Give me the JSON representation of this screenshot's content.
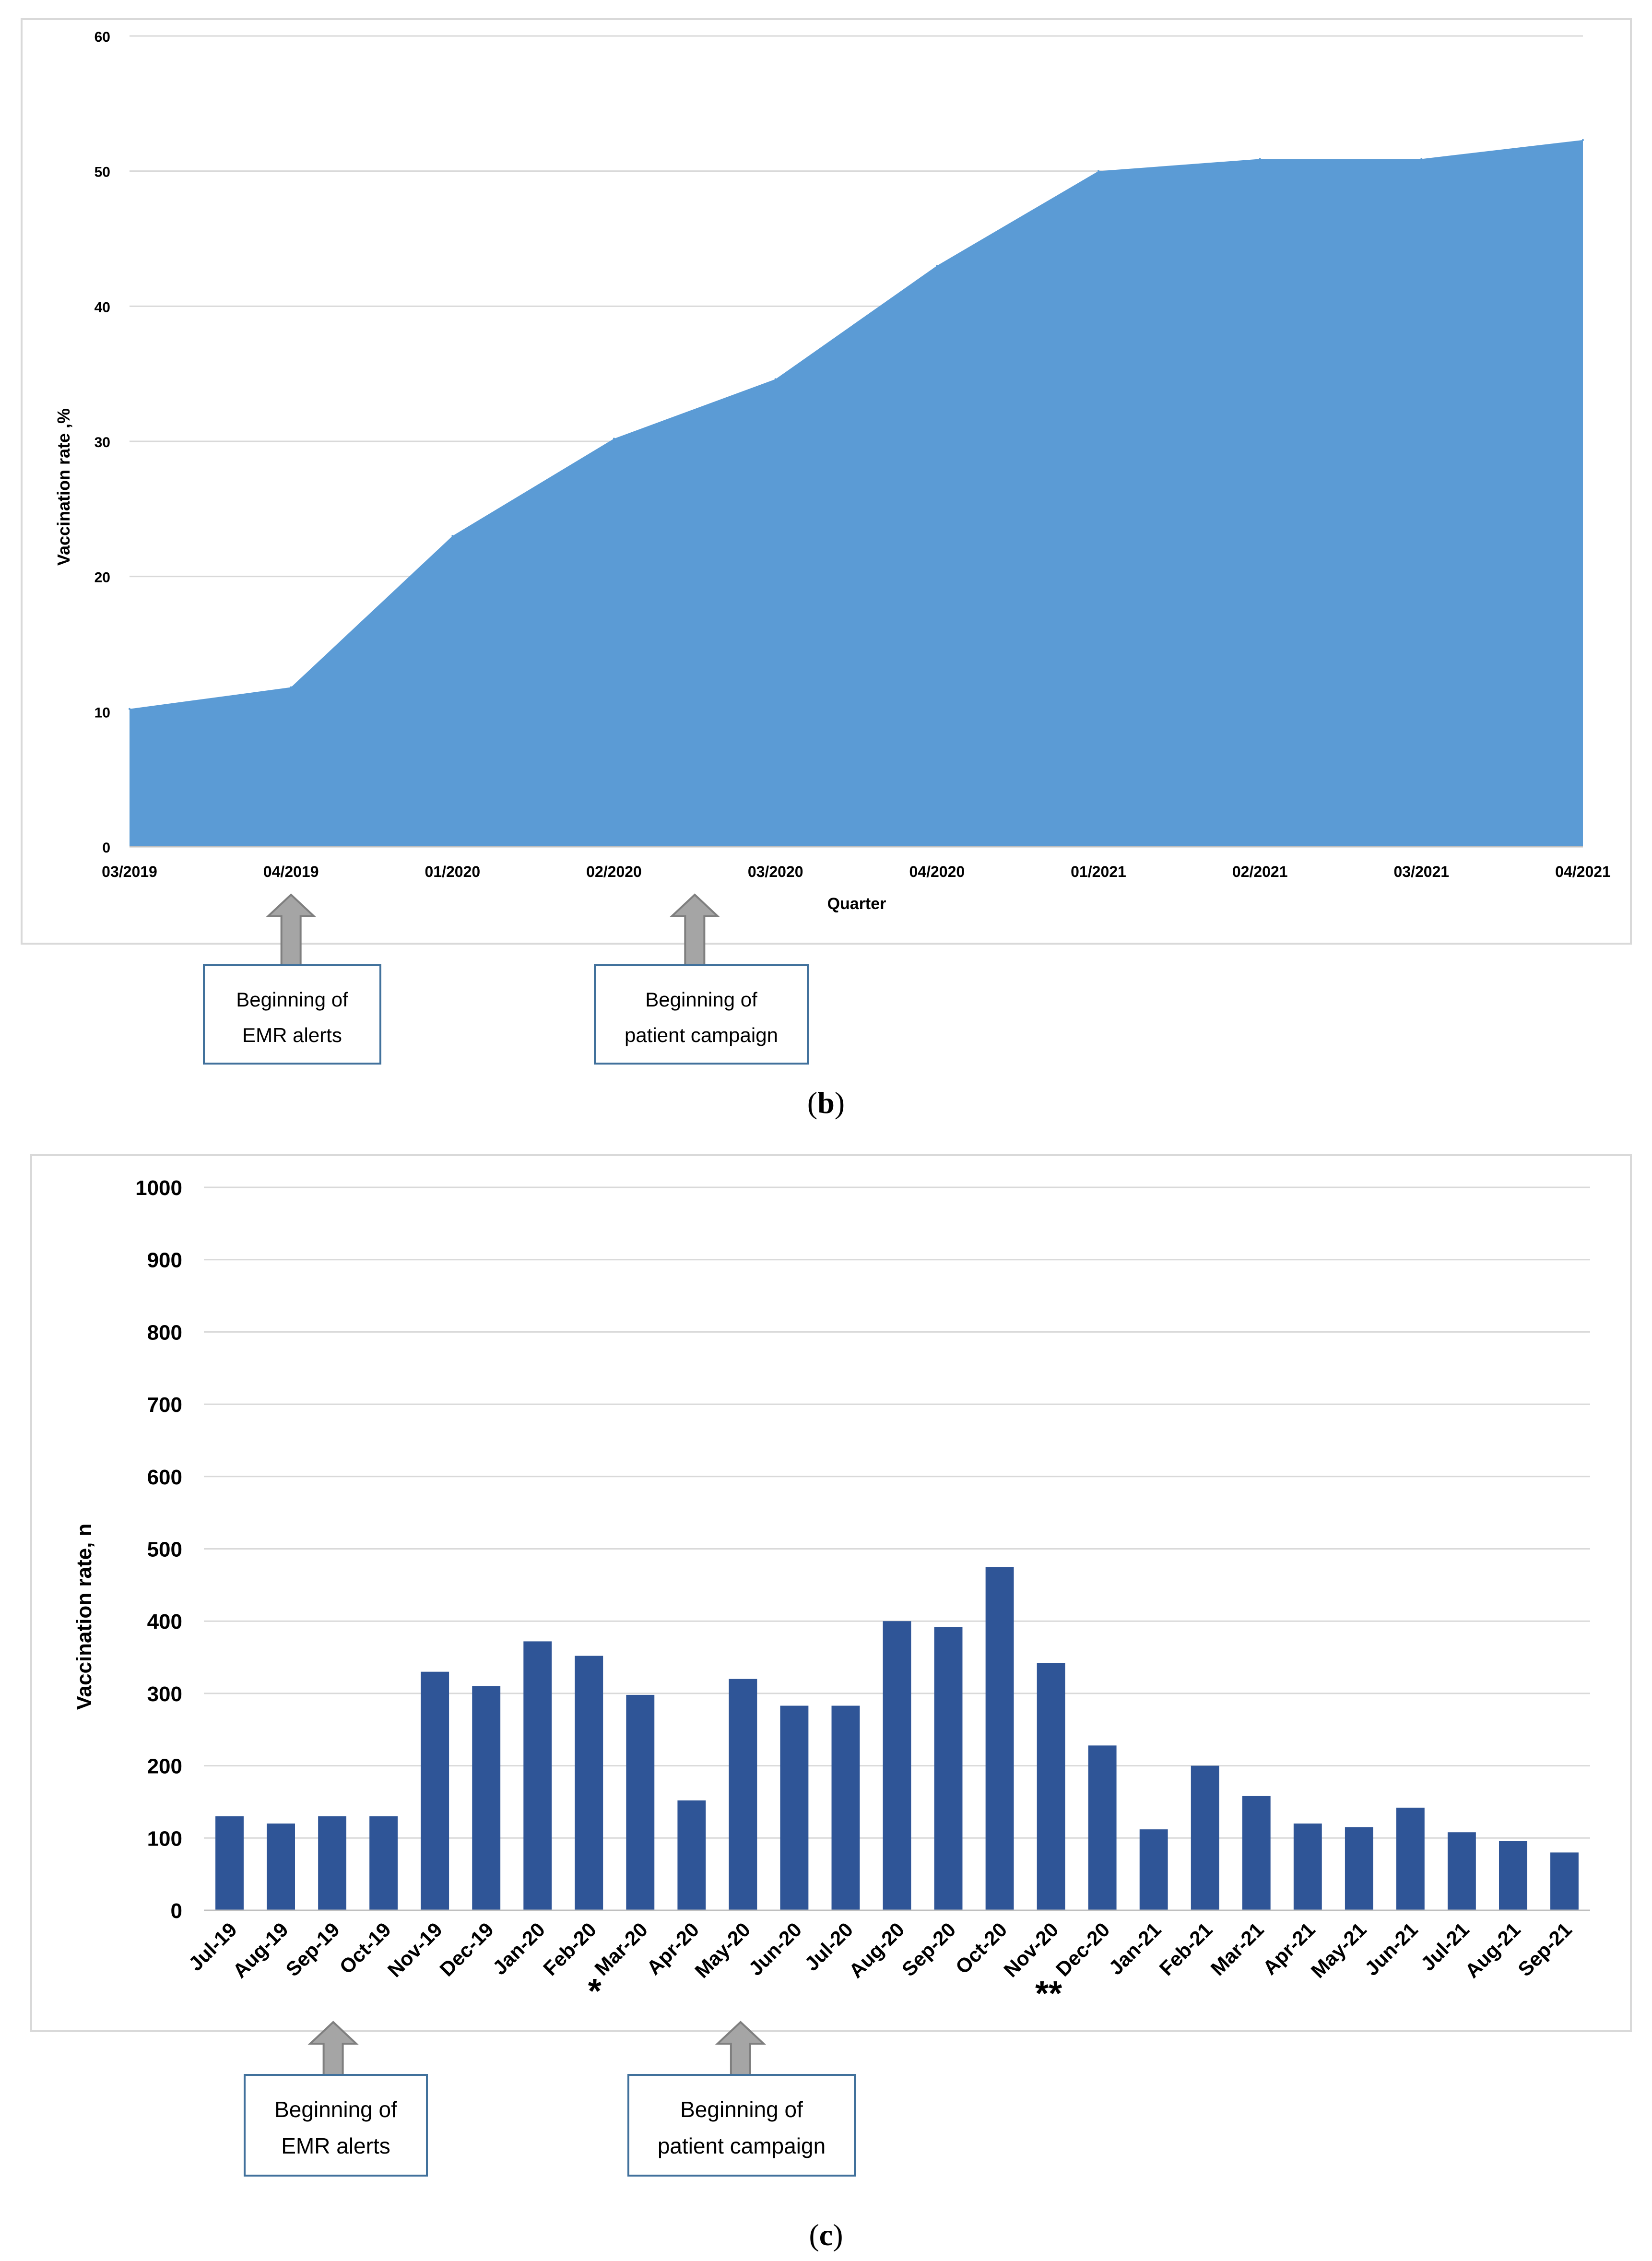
{
  "chart_data": [
    {
      "type": "area",
      "panel_label": "b",
      "title": "",
      "xlabel": "Quarter",
      "ylabel": "Vaccination rate ,%",
      "ylim": [
        0,
        60
      ],
      "yticks": [
        "0",
        "10",
        "20",
        "30",
        "40",
        "50",
        "60"
      ],
      "categories": [
        "03/2019",
        "04/2019",
        "01/2020",
        "02/2020",
        "03/2020",
        "04/2020",
        "01/2021",
        "02/2021",
        "03/2021",
        "04/2021"
      ],
      "values": [
        10.2,
        11.8,
        23.0,
        30.2,
        34.6,
        43.0,
        50.0,
        50.9,
        50.9,
        52.3
      ],
      "color": "#5b9bd5",
      "grid": true,
      "annotations": [
        {
          "line1": "Beginning of",
          "line2": "EMR alerts",
          "at": "04/2019"
        },
        {
          "line1": "Beginning of",
          "line2": "patient campaign",
          "at": "between 02/2020 and 03/2020"
        }
      ]
    },
    {
      "type": "bar",
      "panel_label": "c",
      "title": "",
      "xlabel": "",
      "ylabel": "Vaccination rate, n",
      "ylim": [
        0,
        1000
      ],
      "yticks": [
        "0",
        "100",
        "200",
        "300",
        "400",
        "500",
        "600",
        "700",
        "800",
        "900",
        "1000"
      ],
      "categories": [
        "Jul-19",
        "Aug-19",
        "Sep-19",
        "Oct-19",
        "Nov-19",
        "Dec-19",
        "Jan-20",
        "Feb-20",
        "Mar-20",
        "Apr-20",
        "May-20",
        "Jun-20",
        "Jul-20",
        "Aug-20",
        "Sep-20",
        "Oct-20",
        "Nov-20",
        "Dec-20",
        "Jan-21",
        "Feb-21",
        "Mar-21",
        "Apr-21",
        "May-21",
        "Jun-21",
        "Jul-21",
        "Aug-21",
        "Sep-21"
      ],
      "values": [
        130,
        120,
        130,
        130,
        330,
        310,
        372,
        352,
        298,
        152,
        320,
        283,
        283,
        400,
        392,
        475,
        342,
        228,
        112,
        200,
        158,
        120,
        115,
        142,
        108,
        96,
        80
      ],
      "color": "#2f5597",
      "grid": true,
      "markers": [
        {
          "text": "*",
          "near": "Mar-20"
        },
        {
          "text": "**",
          "near": "Dec-20"
        }
      ],
      "annotations": [
        {
          "line1": "Beginning of",
          "line2": "EMR alerts",
          "at": "Oct-19"
        },
        {
          "line1": "Beginning of",
          "line2": "patient campaign",
          "at": "May-20"
        }
      ]
    }
  ]
}
